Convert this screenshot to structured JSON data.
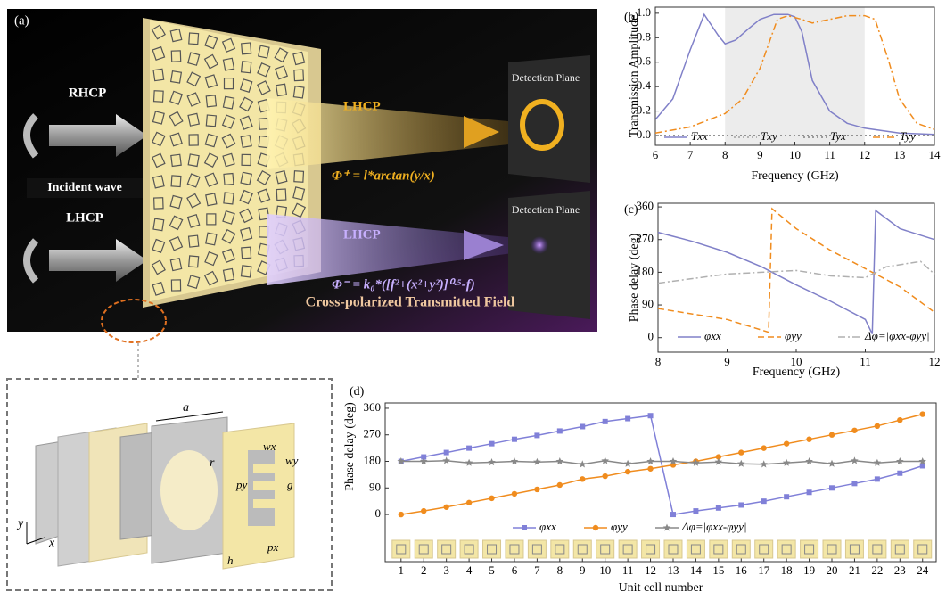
{
  "illustration": {
    "panel_label": "(a)",
    "incident_top": "RHCP",
    "incident_label": "Incident wave",
    "incident_bottom": "LHCP",
    "out_top": "LHCP",
    "out_bottom": "LHCP",
    "detect_top": "Detection Plane",
    "detect_bottom": "Detection Plane",
    "formula_top": "Φ⁺ = l*arctan(y/x)",
    "formula_bottom": "Φ⁻ = k₀*([f²+(x²+y²)]⁰·⁵-f)",
    "field_label": "Cross-polarized Transmitted Field"
  },
  "inset": {
    "a": "a",
    "wx": "wx",
    "wy": "wy",
    "g": "g",
    "r": "r",
    "py": "py",
    "px": "px",
    "h": "h",
    "y": "y",
    "x": "x"
  },
  "chart_data": [
    {
      "type": "line",
      "label": "(b)",
      "xlabel": "Frequency (GHz)",
      "ylabel": "Transmission Amplitude",
      "xlim": [
        6,
        14
      ],
      "ylim": [
        -0.08,
        1.05
      ],
      "xticks": [
        6,
        7,
        8,
        9,
        10,
        11,
        12,
        13,
        14
      ],
      "yticks": [
        {
          "value": 0,
          "label": "0.0"
        },
        {
          "value": 0.2,
          "label": "0.2"
        },
        {
          "value": 0.4,
          "label": "0.4"
        },
        {
          "value": 0.6,
          "label": "0.6"
        },
        {
          "value": 0.8,
          "label": "0.8"
        },
        {
          "value": 1,
          "label": "1.0"
        }
      ],
      "shaded_x": [
        8,
        12
      ],
      "legend": "lower center",
      "series": [
        {
          "name": "Txx",
          "color": "#8080c8",
          "style": "solid",
          "x": [
            6,
            6.5,
            7,
            7.4,
            7.8,
            8,
            8.3,
            8.7,
            9,
            9.4,
            9.8,
            10,
            10.2,
            10.5,
            11,
            11.5,
            12,
            13,
            14
          ],
          "values": [
            0.13,
            0.3,
            0.7,
            0.99,
            0.82,
            0.75,
            0.78,
            0.88,
            0.95,
            0.99,
            0.99,
            0.97,
            0.85,
            0.45,
            0.2,
            0.1,
            0.06,
            0.02,
            0.01
          ]
        },
        {
          "name": "Txy",
          "color": "#a0a0a0",
          "style": "dotted",
          "x": [
            6,
            14
          ],
          "values": [
            0,
            0
          ]
        },
        {
          "name": "Tyx",
          "color": "#808080",
          "style": "dotted",
          "x": [
            6,
            14
          ],
          "values": [
            0,
            0
          ]
        },
        {
          "name": "Tyy",
          "color": "#f08c1e",
          "style": "dashdot",
          "x": [
            6,
            7,
            8,
            8.5,
            9,
            9.5,
            9.8,
            10.2,
            10.5,
            11,
            11.5,
            12,
            12.3,
            12.7,
            13,
            13.5,
            14
          ],
          "values": [
            0.02,
            0.07,
            0.18,
            0.3,
            0.55,
            0.95,
            0.98,
            0.95,
            0.92,
            0.95,
            0.98,
            0.98,
            0.95,
            0.6,
            0.3,
            0.1,
            0.05
          ]
        }
      ]
    },
    {
      "type": "line",
      "label": "(c)",
      "xlabel": "Frequency (GHz)",
      "ylabel": "Phase delay (deg)",
      "xlim": [
        8,
        12
      ],
      "ylim": [
        -40,
        370
      ],
      "xticks": [
        8,
        9,
        10,
        11,
        12
      ],
      "yticks": [
        0,
        90,
        180,
        270,
        360
      ],
      "legend": "lower center",
      "series": [
        {
          "name": "φxx",
          "color": "#8080c8",
          "style": "solid",
          "x": [
            8,
            8.5,
            9,
            9.5,
            10,
            10.5,
            11,
            11.1,
            11.15,
            11.5,
            12
          ],
          "values": [
            290,
            265,
            235,
            195,
            145,
            100,
            50,
            10,
            350,
            300,
            270
          ]
        },
        {
          "name": "φyy",
          "color": "#f08c1e",
          "style": "dashed",
          "x": [
            8,
            8.5,
            9,
            9.6,
            9.65,
            10,
            10.5,
            11,
            11.5,
            12
          ],
          "values": [
            80,
            65,
            50,
            15,
            355,
            300,
            240,
            190,
            140,
            70
          ]
        },
        {
          "name": "Δφ=|φxx-φyy|",
          "color": "#b0b0b0",
          "style": "dashdot",
          "x": [
            8,
            9,
            9.5,
            10,
            10.5,
            11,
            11.3,
            11.8,
            12
          ],
          "values": [
            150,
            175,
            180,
            185,
            170,
            165,
            195,
            210,
            175
          ]
        }
      ]
    },
    {
      "type": "line",
      "label": "(d)",
      "xlabel": "Unit cell number",
      "ylabel": "Phase delay (deg)",
      "xlim": [
        0.3,
        24.6
      ],
      "ylim": [
        -160,
        378
      ],
      "xticks": [
        1,
        2,
        3,
        4,
        5,
        6,
        7,
        8,
        9,
        10,
        11,
        12,
        13,
        14,
        15,
        16,
        17,
        18,
        19,
        20,
        21,
        22,
        23,
        24
      ],
      "yticks": [
        0,
        90,
        180,
        270,
        360
      ],
      "legend": "lower center",
      "series": [
        {
          "name": "φxx",
          "color": "#8080d8",
          "style": "solid",
          "marker": "square",
          "x": [
            1,
            2,
            3,
            4,
            5,
            6,
            7,
            8,
            9,
            10,
            11,
            12,
            13,
            14,
            15,
            16,
            17,
            18,
            19,
            20,
            21,
            22,
            23,
            24
          ],
          "values": [
            180,
            195,
            210,
            225,
            240,
            255,
            268,
            283,
            298,
            315,
            325,
            335,
            0,
            12,
            22,
            32,
            45,
            60,
            75,
            90,
            105,
            120,
            140,
            165
          ]
        },
        {
          "name": "φyy",
          "color": "#f08c1e",
          "style": "solid",
          "marker": "circle",
          "x": [
            1,
            2,
            3,
            4,
            5,
            6,
            7,
            8,
            9,
            10,
            11,
            12,
            13,
            14,
            15,
            16,
            17,
            18,
            19,
            20,
            21,
            22,
            23,
            24
          ],
          "values": [
            0,
            12,
            25,
            40,
            55,
            70,
            85,
            100,
            120,
            130,
            145,
            155,
            168,
            180,
            195,
            210,
            225,
            240,
            255,
            270,
            285,
            300,
            320,
            340
          ]
        },
        {
          "name": "Δφ=|φxx-φyy|",
          "color": "#888888",
          "style": "solid",
          "marker": "star",
          "x": [
            1,
            2,
            3,
            4,
            5,
            6,
            7,
            8,
            9,
            10,
            11,
            12,
            13,
            14,
            15,
            16,
            17,
            18,
            19,
            20,
            21,
            22,
            23,
            24
          ],
          "values": [
            180,
            180,
            182,
            175,
            177,
            180,
            178,
            180,
            170,
            182,
            172,
            180,
            180,
            175,
            178,
            172,
            170,
            175,
            180,
            172,
            182,
            175,
            180,
            180
          ]
        }
      ]
    }
  ]
}
